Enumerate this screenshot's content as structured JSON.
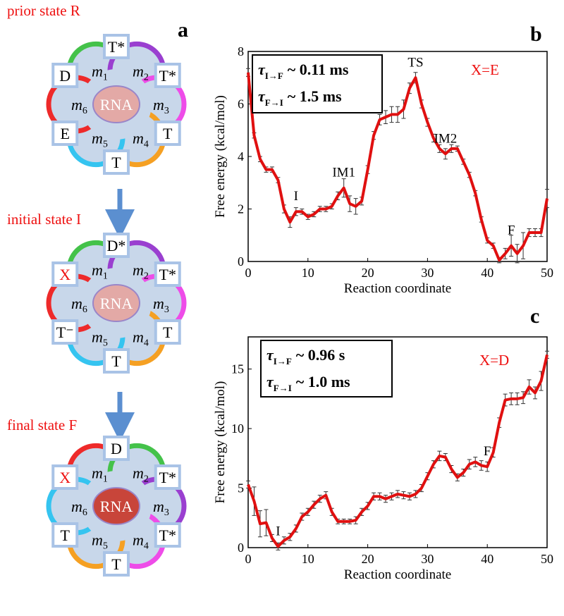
{
  "diagram": {
    "panel_label": "a",
    "states": [
      {
        "title": "prior state R",
        "center": {
          "label": "RNA",
          "fill": "#e3a9a6",
          "text_color": "#ffffff"
        },
        "modules": [
          [
            "m",
            "1"
          ],
          [
            "m",
            "2"
          ],
          [
            "m",
            "3"
          ],
          [
            "m",
            "4"
          ],
          [
            "m",
            "5"
          ],
          [
            "m",
            "6"
          ]
        ],
        "module_colors": [
          "#44c24a",
          "#9a3fd0",
          "#ee4ce8",
          "#f5a023",
          "#35c4f0",
          "#ee2a2a"
        ],
        "boxes": [
          {
            "label": "T*",
            "color": "#000000"
          },
          {
            "label": "T*",
            "color": "#000000"
          },
          {
            "label": "T",
            "color": "#000000"
          },
          {
            "label": "T",
            "color": "#000000"
          },
          {
            "label": "E",
            "color": "#000000"
          },
          {
            "label": "D",
            "color": "#000000"
          }
        ]
      },
      {
        "title": "initial state I",
        "center": {
          "label": "RNA",
          "fill": "#e3a9a6",
          "text_color": "#ffffff"
        },
        "modules": [
          [
            "m",
            "1"
          ],
          [
            "m",
            "2"
          ],
          [
            "m",
            "3"
          ],
          [
            "m",
            "4"
          ],
          [
            "m",
            "5"
          ],
          [
            "m",
            "6"
          ]
        ],
        "module_colors": [
          "#44c24a",
          "#9a3fd0",
          "#ee4ce8",
          "#f5a023",
          "#35c4f0",
          "#ee2a2a"
        ],
        "boxes": [
          {
            "label": "D*",
            "color": "#000000"
          },
          {
            "label": "T*",
            "color": "#000000"
          },
          {
            "label": "T",
            "color": "#000000"
          },
          {
            "label": "T",
            "color": "#000000"
          },
          {
            "label": "T⁻",
            "color": "#000000"
          },
          {
            "label": "X",
            "color": "#ee1111"
          }
        ]
      },
      {
        "title": "final state F",
        "center": {
          "label": "RNA",
          "fill": "#c8453a",
          "text_color": "#ffffff"
        },
        "modules": [
          [
            "m",
            "1"
          ],
          [
            "m",
            "2"
          ],
          [
            "m",
            "3"
          ],
          [
            "m",
            "4"
          ],
          [
            "m",
            "5"
          ],
          [
            "m",
            "6"
          ]
        ],
        "module_colors": [
          "#ee2a2a",
          "#44c24a",
          "#9a3fd0",
          "#ee4ce8",
          "#f5a023",
          "#35c4f0"
        ],
        "boxes": [
          {
            "label": "D",
            "color": "#000000"
          },
          {
            "label": "T*",
            "color": "#000000"
          },
          {
            "label": "T*",
            "color": "#000000"
          },
          {
            "label": "T",
            "color": "#000000"
          },
          {
            "label": "T",
            "color": "#000000"
          },
          {
            "label": "X",
            "color": "#ee1111"
          }
        ]
      }
    ]
  },
  "chart_data": [
    {
      "type": "line",
      "panel_label": "b",
      "xlabel": "Reaction coordinate",
      "ylabel": "Free energy (kcal/mol)",
      "case_label": "X=E",
      "rates": [
        {
          "symbol": "τ",
          "subscript": "I→F",
          "text": "~ 0.11 ms"
        },
        {
          "symbol": "τ",
          "subscript": "F→I",
          "text": "~ 1.5 ms"
        }
      ],
      "x": [
        0,
        1,
        2,
        3,
        4,
        5,
        6,
        7,
        8,
        9,
        10,
        11,
        12,
        13,
        14,
        15,
        16,
        17,
        18,
        19,
        20,
        21,
        22,
        23,
        24,
        25,
        26,
        27,
        28,
        29,
        30,
        31,
        32,
        33,
        34,
        35,
        36,
        37,
        38,
        39,
        40,
        41,
        42,
        43,
        44,
        45,
        46,
        47,
        48,
        49,
        50
      ],
      "series": [
        {
          "color": "#e01010",
          "values": [
            7.2,
            4.8,
            3.9,
            3.5,
            3.5,
            3.1,
            2.0,
            1.5,
            1.9,
            1.9,
            1.7,
            1.8,
            2.0,
            2.0,
            2.1,
            2.5,
            2.8,
            2.2,
            2.1,
            2.3,
            3.5,
            4.8,
            5.4,
            5.5,
            5.6,
            5.6,
            5.8,
            6.6,
            7.0,
            6.0,
            5.3,
            4.7,
            4.3,
            4.1,
            4.3,
            4.3,
            3.8,
            3.3,
            2.6,
            1.6,
            0.8,
            0.6,
            0.05,
            0.3,
            0.6,
            0.3,
            0.6,
            1.1,
            1.1,
            1.1,
            2.4
          ],
          "errors": [
            0.15,
            0.1,
            0.1,
            0.1,
            0.1,
            0.1,
            0.15,
            0.2,
            0.15,
            0.1,
            0.1,
            0.1,
            0.1,
            0.1,
            0.1,
            0.15,
            0.35,
            0.3,
            0.3,
            0.15,
            0.15,
            0.15,
            0.2,
            0.25,
            0.3,
            0.3,
            0.35,
            0.2,
            0.2,
            0.15,
            0.15,
            0.15,
            0.15,
            0.2,
            0.15,
            0.1,
            0.1,
            0.1,
            0.1,
            0.1,
            0.1,
            0.1,
            0.1,
            0.2,
            0.4,
            0.35,
            0.5,
            0.15,
            0.15,
            0.15,
            0.35
          ]
        }
      ],
      "point_labels": [
        {
          "text": "I",
          "x": 8
        },
        {
          "text": "IM1",
          "x": 16
        },
        {
          "text": "TS",
          "x": 28
        },
        {
          "text": "IM2",
          "x": 33
        },
        {
          "text": "F",
          "x": 44
        }
      ],
      "xlim": [
        0,
        50
      ],
      "ylim": [
        0,
        8
      ],
      "xticks": [
        0,
        10,
        20,
        30,
        40,
        50
      ],
      "yticks": [
        0,
        2,
        4,
        6,
        8
      ]
    },
    {
      "type": "line",
      "panel_label": "c",
      "xlabel": "Reaction coordinate",
      "ylabel": "Free energy (kcal/mol)",
      "case_label": "X=D",
      "rates": [
        {
          "symbol": "τ",
          "subscript": "I→F",
          "text": "~ 0.96 s"
        },
        {
          "symbol": "τ",
          "subscript": "F→I",
          "text": "~ 1.0 ms"
        }
      ],
      "x": [
        0,
        1,
        2,
        3,
        4,
        5,
        6,
        7,
        8,
        9,
        10,
        11,
        12,
        13,
        14,
        15,
        16,
        17,
        18,
        19,
        20,
        21,
        22,
        23,
        24,
        25,
        26,
        27,
        28,
        29,
        30,
        31,
        32,
        33,
        34,
        35,
        36,
        37,
        38,
        39,
        40,
        41,
        42,
        43,
        44,
        45,
        46,
        47,
        48,
        49,
        50
      ],
      "series": [
        {
          "color": "#e01010",
          "values": [
            5.3,
            3.9,
            2.0,
            2.1,
            0.8,
            0.1,
            0.6,
            0.9,
            1.6,
            2.6,
            3.0,
            3.6,
            4.1,
            4.4,
            3.0,
            2.2,
            2.2,
            2.2,
            2.3,
            3.0,
            3.5,
            4.3,
            4.3,
            4.1,
            4.3,
            4.5,
            4.4,
            4.3,
            4.5,
            5.0,
            6.0,
            7.0,
            7.7,
            7.6,
            6.6,
            5.9,
            6.3,
            7.0,
            7.2,
            6.9,
            6.8,
            8.0,
            10.5,
            12.4,
            12.5,
            12.5,
            12.6,
            13.5,
            13.0,
            14.0,
            16.2
          ],
          "errors": [
            0.3,
            1.2,
            1.1,
            1.1,
            0.3,
            0.3,
            0.3,
            0.3,
            0.3,
            0.3,
            0.3,
            0.3,
            0.3,
            0.3,
            0.3,
            0.2,
            0.2,
            0.2,
            0.3,
            0.3,
            0.3,
            0.3,
            0.3,
            0.3,
            0.3,
            0.3,
            0.3,
            0.3,
            0.3,
            0.3,
            0.3,
            0.3,
            0.4,
            0.3,
            0.3,
            0.3,
            0.3,
            0.4,
            0.4,
            0.4,
            0.4,
            0.4,
            0.4,
            0.5,
            0.5,
            0.5,
            0.5,
            0.6,
            0.5,
            0.8,
            0.3
          ]
        }
      ],
      "point_labels": [
        {
          "text": "I",
          "x": 5
        },
        {
          "text": "F",
          "x": 40
        }
      ],
      "xlim": [
        0,
        50
      ],
      "ylim": [
        0,
        17.7
      ],
      "xticks": [
        0,
        10,
        20,
        30,
        40,
        50
      ],
      "yticks": [
        0,
        5,
        10,
        15
      ]
    }
  ]
}
